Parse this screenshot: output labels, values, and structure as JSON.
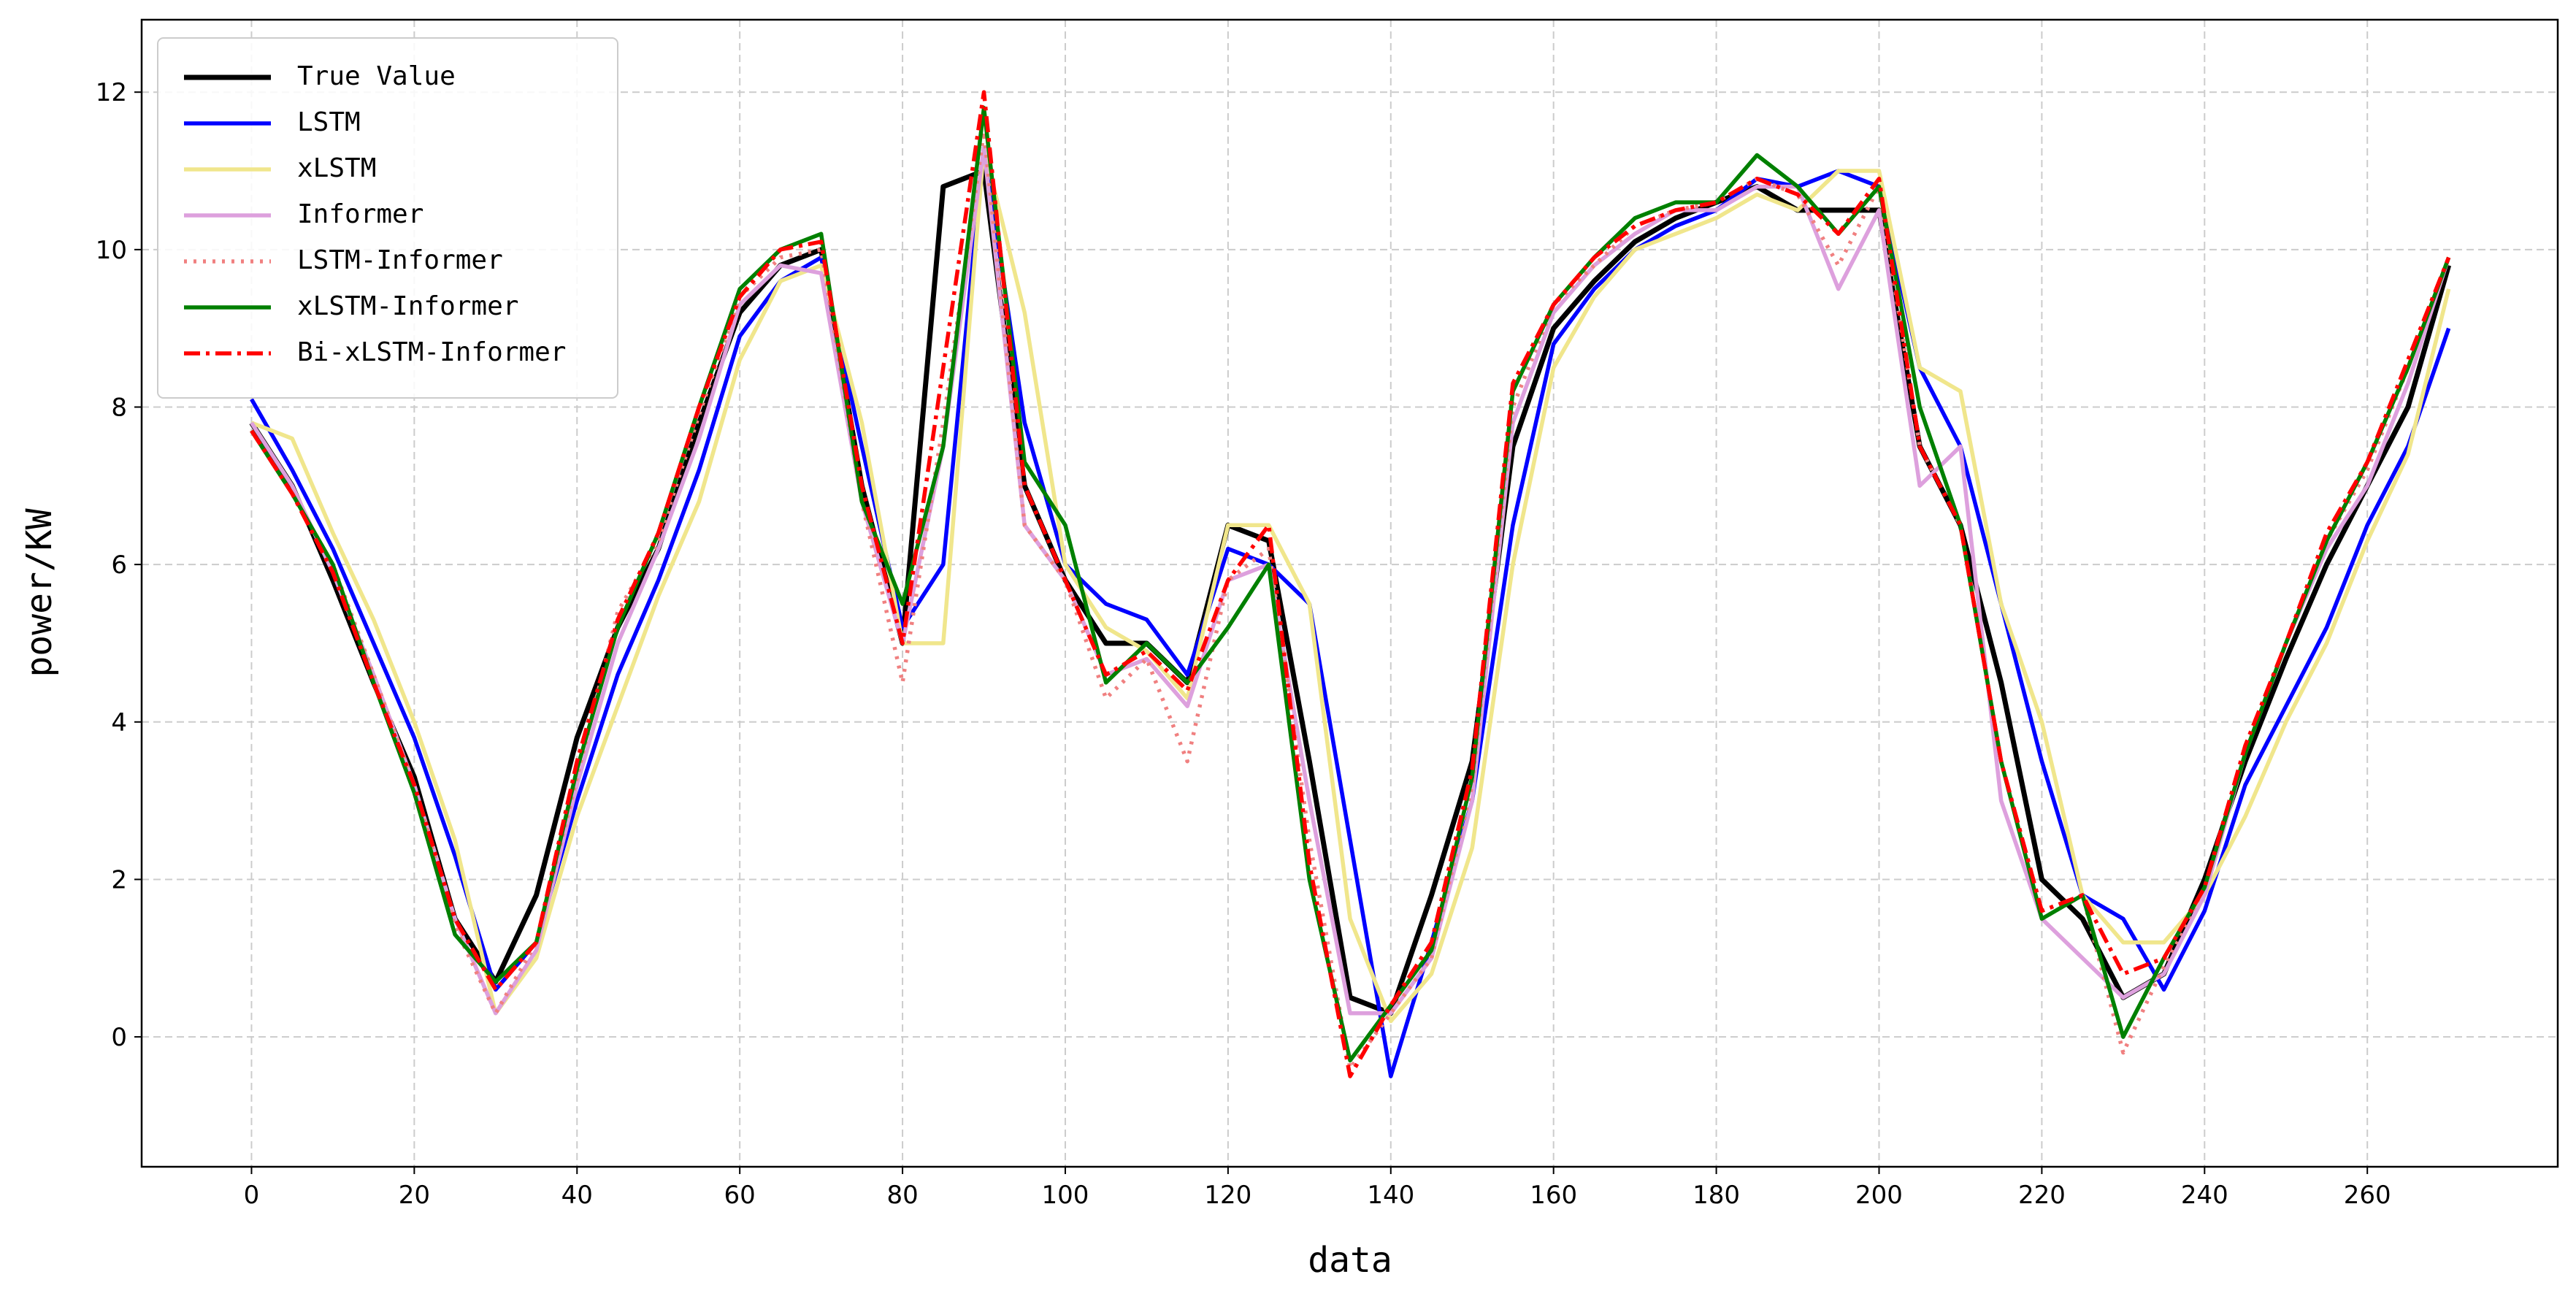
{
  "chart_data": {
    "type": "line",
    "xlabel": "data",
    "ylabel": "power/KW",
    "xlim": [
      -13.5,
      283.4
    ],
    "ylim": [
      -1.65,
      12.92
    ],
    "xticks": [
      0,
      20,
      40,
      60,
      80,
      100,
      120,
      140,
      160,
      180,
      200,
      220,
      240,
      260
    ],
    "yticks": [
      0,
      2,
      4,
      6,
      8,
      10,
      12
    ],
    "grid": true,
    "legend": "upper left",
    "x": [
      0,
      5,
      10,
      15,
      20,
      25,
      30,
      35,
      40,
      45,
      50,
      55,
      60,
      65,
      70,
      75,
      80,
      85,
      90,
      95,
      100,
      105,
      110,
      115,
      120,
      125,
      130,
      135,
      140,
      145,
      150,
      155,
      160,
      165,
      170,
      175,
      180,
      185,
      190,
      195,
      200,
      205,
      210,
      215,
      220,
      225,
      230,
      235,
      240,
      245,
      250,
      255,
      260,
      265,
      270
    ],
    "series": [
      {
        "name": "True Value",
        "color": "#000000",
        "linestyle": "solid",
        "values": [
          7.8,
          7.0,
          5.8,
          4.5,
          3.3,
          1.5,
          0.7,
          1.8,
          3.8,
          5.2,
          6.2,
          7.8,
          9.2,
          9.8,
          10.0,
          7.0,
          5.0,
          10.8,
          11.0,
          7.0,
          5.8,
          5.0,
          5.0,
          4.5,
          6.5,
          6.3,
          3.5,
          0.5,
          0.3,
          1.8,
          3.5,
          7.5,
          9.0,
          9.6,
          10.1,
          10.4,
          10.6,
          10.8,
          10.5,
          10.5,
          10.5,
          7.5,
          6.5,
          4.5,
          2.0,
          1.5,
          0.5,
          0.8,
          2.0,
          3.5,
          4.8,
          6.0,
          7.0,
          8.0,
          9.8
        ]
      },
      {
        "name": "LSTM",
        "color": "#0000ff",
        "linestyle": "solid",
        "values": [
          8.1,
          7.2,
          6.2,
          5.0,
          3.8,
          2.3,
          0.6,
          1.2,
          3.0,
          4.6,
          5.8,
          7.2,
          8.9,
          9.6,
          9.9,
          7.5,
          5.2,
          6.0,
          11.3,
          7.8,
          6.0,
          5.5,
          5.3,
          4.6,
          6.2,
          6.0,
          5.5,
          2.5,
          -0.5,
          1.2,
          3.0,
          6.5,
          8.8,
          9.5,
          10.0,
          10.3,
          10.5,
          10.9,
          10.8,
          11.0,
          10.8,
          8.5,
          7.5,
          5.5,
          3.5,
          1.8,
          1.5,
          0.6,
          1.6,
          3.2,
          4.2,
          5.2,
          6.5,
          7.5,
          9.0
        ]
      },
      {
        "name": "xLSTM",
        "color": "#f0e68c",
        "linestyle": "solid",
        "values": [
          7.8,
          7.6,
          6.4,
          5.3,
          4.0,
          2.5,
          0.3,
          1.0,
          2.8,
          4.2,
          5.6,
          6.8,
          8.6,
          9.6,
          9.8,
          7.8,
          5.0,
          5.0,
          11.3,
          9.2,
          6.0,
          5.2,
          4.9,
          4.3,
          6.5,
          6.5,
          5.5,
          1.5,
          0.2,
          0.8,
          2.4,
          6.0,
          8.5,
          9.4,
          10.0,
          10.2,
          10.4,
          10.7,
          10.5,
          11.0,
          11.0,
          8.5,
          8.2,
          5.5,
          4.0,
          1.8,
          1.2,
          1.2,
          1.8,
          2.8,
          4.0,
          5.0,
          6.3,
          7.4,
          9.5
        ]
      },
      {
        "name": "Informer",
        "color": "#dda0dd",
        "linestyle": "solid",
        "values": [
          7.8,
          7.0,
          5.9,
          4.6,
          3.2,
          1.5,
          0.3,
          1.1,
          3.2,
          5.0,
          6.2,
          7.6,
          9.3,
          9.8,
          9.7,
          6.8,
          5.0,
          7.5,
          11.3,
          6.5,
          5.8,
          4.6,
          4.8,
          4.2,
          5.8,
          6.0,
          3.0,
          0.3,
          0.3,
          1.0,
          3.0,
          7.8,
          9.2,
          9.8,
          10.2,
          10.5,
          10.5,
          10.8,
          10.8,
          9.5,
          10.5,
          7.0,
          7.5,
          3.0,
          1.5,
          1.0,
          0.5,
          0.8,
          1.8,
          3.6,
          5.0,
          6.2,
          7.0,
          8.3,
          9.9
        ]
      },
      {
        "name": "LSTM-Informer",
        "color": "#f08080",
        "linestyle": "dotted",
        "values": [
          7.7,
          6.9,
          6.0,
          4.6,
          3.2,
          1.4,
          0.3,
          1.2,
          3.3,
          5.4,
          6.3,
          7.9,
          9.4,
          9.9,
          10.0,
          6.8,
          4.5,
          7.8,
          11.5,
          6.5,
          5.8,
          4.3,
          4.8,
          3.5,
          5.8,
          6.2,
          2.5,
          -0.4,
          0.3,
          1.0,
          3.2,
          8.0,
          9.3,
          9.8,
          10.3,
          10.5,
          10.6,
          10.9,
          10.7,
          9.8,
          10.8,
          7.5,
          6.5,
          3.5,
          1.5,
          1.8,
          -0.2,
          0.9,
          1.9,
          3.6,
          5.0,
          6.3,
          7.2,
          8.5,
          9.9
        ]
      },
      {
        "name": "xLSTM-Informer",
        "color": "#008000",
        "linestyle": "solid",
        "values": [
          7.7,
          6.9,
          6.0,
          4.5,
          3.1,
          1.3,
          0.7,
          1.2,
          3.4,
          5.2,
          6.4,
          8.0,
          9.5,
          10.0,
          10.2,
          6.8,
          5.5,
          7.5,
          11.8,
          7.3,
          6.5,
          4.5,
          5.0,
          4.5,
          5.2,
          6.0,
          2.0,
          -0.3,
          0.4,
          1.1,
          3.3,
          8.2,
          9.3,
          9.9,
          10.4,
          10.6,
          10.6,
          11.2,
          10.8,
          10.2,
          10.8,
          8.0,
          6.5,
          3.5,
          1.5,
          1.8,
          0.0,
          1.0,
          1.9,
          3.6,
          5.0,
          6.3,
          7.3,
          8.5,
          9.9
        ]
      },
      {
        "name": "Bi-xLSTM-Informer",
        "color": "#ff0000",
        "linestyle": "dashdot",
        "values": [
          7.7,
          6.9,
          5.9,
          4.5,
          3.2,
          1.5,
          0.6,
          1.2,
          3.5,
          5.3,
          6.4,
          8.0,
          9.4,
          10.0,
          10.1,
          7.0,
          5.0,
          8.5,
          12.0,
          7.0,
          5.8,
          4.6,
          4.9,
          4.4,
          5.8,
          6.5,
          2.2,
          -0.5,
          0.4,
          1.2,
          3.4,
          8.3,
          9.3,
          9.9,
          10.3,
          10.5,
          10.6,
          10.9,
          10.7,
          10.2,
          10.9,
          7.5,
          6.5,
          3.5,
          1.6,
          1.8,
          0.8,
          1.0,
          1.9,
          3.7,
          5.0,
          6.4,
          7.3,
          8.6,
          9.9
        ]
      }
    ]
  }
}
